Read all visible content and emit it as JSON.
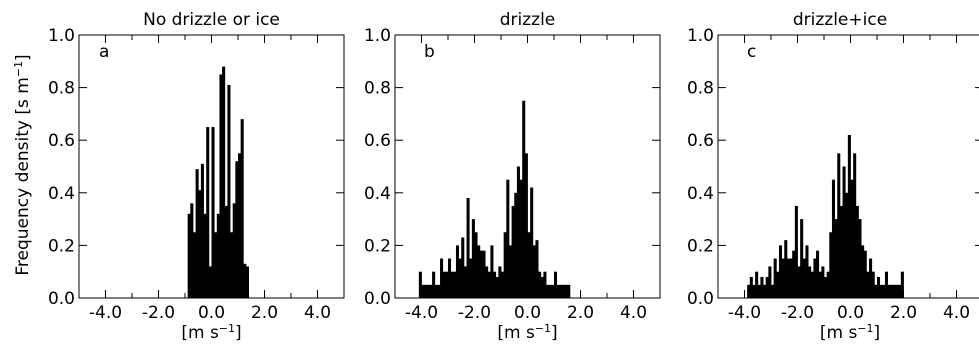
{
  "figure": {
    "ylabel": {
      "prefix": "Frequency density [s m",
      "sup": "−1",
      "suffix": "]"
    }
  },
  "chart_data": [
    {
      "type": "bar",
      "letter": "a",
      "title": "No drizzle or ice",
      "xlabel": {
        "prefix": "[m s",
        "sup": "−1",
        "suffix": "]"
      },
      "xlim": [
        -5.0,
        5.0
      ],
      "ylim": [
        0.0,
        1.0
      ],
      "xticks": [
        "-4.0",
        "-2.0",
        "0.0",
        "2.0",
        "4.0"
      ],
      "yticks": [
        "0.0",
        "0.2",
        "0.4",
        "0.6",
        "0.8",
        "1.0"
      ],
      "bin_width": 0.1,
      "bins_x": [
        -0.85,
        -0.75,
        -0.65,
        -0.55,
        -0.45,
        -0.35,
        -0.25,
        -0.15,
        -0.05,
        0.05,
        0.15,
        0.25,
        0.35,
        0.45,
        0.55,
        0.65,
        0.75,
        0.85,
        0.95,
        1.05,
        1.15,
        1.25,
        1.35
      ],
      "values": [
        0.32,
        0.36,
        0.25,
        0.49,
        0.41,
        0.51,
        0.32,
        0.65,
        0.12,
        0.65,
        0.25,
        0.32,
        0.85,
        0.88,
        0.35,
        0.81,
        0.25,
        0.36,
        0.52,
        0.55,
        0.68,
        0.13,
        0.12
      ]
    },
    {
      "type": "bar",
      "letter": "b",
      "title": "drizzle",
      "xlabel": {
        "prefix": "[m s",
        "sup": "−1",
        "suffix": "]"
      },
      "xlim": [
        -5.0,
        5.0
      ],
      "ylim": [
        0.0,
        1.0
      ],
      "xticks": [
        "-4.0",
        "-2.0",
        "0.0",
        "2.0",
        "4.0"
      ],
      "yticks": [
        "0.0",
        "0.2",
        "0.4",
        "0.6",
        "0.8",
        "1.0"
      ],
      "bin_width": 0.1,
      "bins_x": [
        -4.05,
        -3.95,
        -3.85,
        -3.75,
        -3.65,
        -3.55,
        -3.45,
        -3.35,
        -3.25,
        -3.15,
        -3.05,
        -2.95,
        -2.85,
        -2.75,
        -2.65,
        -2.55,
        -2.45,
        -2.35,
        -2.25,
        -2.15,
        -2.05,
        -1.95,
        -1.85,
        -1.75,
        -1.65,
        -1.55,
        -1.45,
        -1.35,
        -1.25,
        -1.15,
        -1.05,
        -0.95,
        -0.85,
        -0.75,
        -0.65,
        -0.55,
        -0.45,
        -0.35,
        -0.25,
        -0.15,
        -0.05,
        0.05,
        0.15,
        0.25,
        0.35,
        0.45,
        0.55,
        0.65,
        0.75,
        0.85,
        0.95,
        1.05,
        1.15,
        1.25,
        1.35,
        1.45,
        1.55
      ],
      "values": [
        0.1,
        0.05,
        0.05,
        0.05,
        0.05,
        0.1,
        0.05,
        0.05,
        0.15,
        0.1,
        0.1,
        0.15,
        0.1,
        0.1,
        0.2,
        0.15,
        0.23,
        0.12,
        0.38,
        0.15,
        0.3,
        0.25,
        0.2,
        0.18,
        0.18,
        0.12,
        0.1,
        0.2,
        0.1,
        0.08,
        0.12,
        0.1,
        0.25,
        0.45,
        0.2,
        0.35,
        0.4,
        0.5,
        0.45,
        0.75,
        0.55,
        0.25,
        0.42,
        0.2,
        0.22,
        0.1,
        0.08,
        0.1,
        0.05,
        0.05,
        0.05,
        0.1,
        0.05,
        0.05,
        0.05,
        0.05,
        0.05
      ]
    },
    {
      "type": "bar",
      "letter": "c",
      "title": "drizzle+ice",
      "xlabel": {
        "prefix": "[m s",
        "sup": "−1",
        "suffix": "]"
      },
      "xlim": [
        -5.0,
        5.0
      ],
      "ylim": [
        0.0,
        1.0
      ],
      "xticks": [
        "-4.0",
        "-2.0",
        "0.0",
        "2.0",
        "4.0"
      ],
      "yticks": [
        "0.0",
        "0.2",
        "0.4",
        "0.6",
        "0.8",
        "1.0"
      ],
      "bin_width": 0.1,
      "bins_x": [
        -3.85,
        -3.75,
        -3.65,
        -3.55,
        -3.45,
        -3.35,
        -3.25,
        -3.15,
        -3.05,
        -2.95,
        -2.85,
        -2.75,
        -2.65,
        -2.55,
        -2.45,
        -2.35,
        -2.25,
        -2.15,
        -2.05,
        -1.95,
        -1.85,
        -1.75,
        -1.65,
        -1.55,
        -1.45,
        -1.35,
        -1.25,
        -1.15,
        -1.05,
        -0.95,
        -0.85,
        -0.75,
        -0.65,
        -0.55,
        -0.45,
        -0.35,
        -0.25,
        -0.15,
        -0.05,
        0.05,
        0.15,
        0.25,
        0.35,
        0.45,
        0.55,
        0.65,
        0.75,
        0.85,
        0.95,
        1.05,
        1.15,
        1.25,
        1.35,
        1.45,
        1.55,
        1.65,
        1.75,
        1.85,
        1.95
      ],
      "values": [
        0.05,
        0.08,
        0.05,
        0.1,
        0.05,
        0.08,
        0.05,
        0.08,
        0.12,
        0.05,
        0.15,
        0.1,
        0.2,
        0.15,
        0.22,
        0.15,
        0.15,
        0.18,
        0.35,
        0.12,
        0.3,
        0.15,
        0.2,
        0.12,
        0.1,
        0.15,
        0.18,
        0.1,
        0.12,
        0.08,
        0.1,
        0.25,
        0.45,
        0.3,
        0.55,
        0.35,
        0.5,
        0.4,
        0.62,
        0.45,
        0.55,
        0.35,
        0.3,
        0.2,
        0.18,
        0.1,
        0.15,
        0.1,
        0.05,
        0.08,
        0.05,
        0.05,
        0.1,
        0.05,
        0.05,
        0.05,
        0.05,
        0.05,
        0.1
      ]
    }
  ]
}
